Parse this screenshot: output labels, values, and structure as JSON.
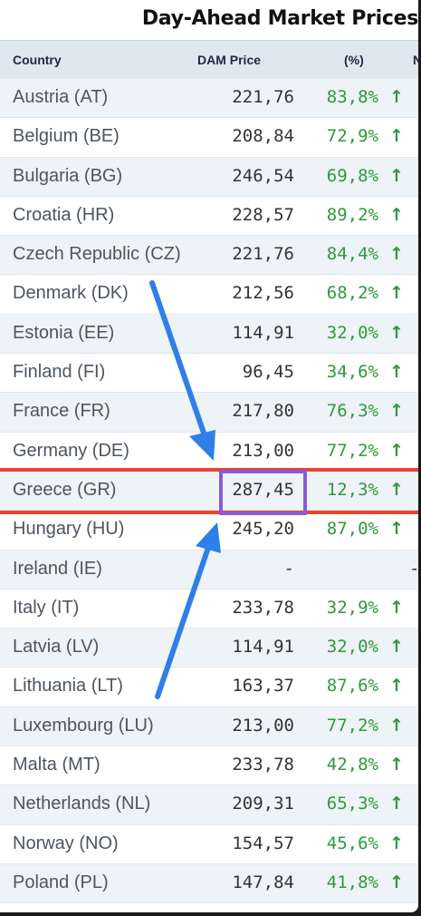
{
  "title": "Day-Ahead Market Prices",
  "table": {
    "headers": {
      "country": "Country",
      "price": "DAM Price",
      "pct": "(%)",
      "extra": "N"
    },
    "rows": [
      {
        "country": "Austria (AT)",
        "price": "221,76",
        "pct": "83,8%",
        "arrow": "↑"
      },
      {
        "country": "Belgium (BE)",
        "price": "208,84",
        "pct": "72,9%",
        "arrow": "↑"
      },
      {
        "country": "Bulgaria (BG)",
        "price": "246,54",
        "pct": "69,8%",
        "arrow": "↑"
      },
      {
        "country": "Croatia (HR)",
        "price": "228,57",
        "pct": "89,2%",
        "arrow": "↑"
      },
      {
        "country": "Czech Republic (CZ)",
        "price": "221,76",
        "pct": "84,4%",
        "arrow": "↑"
      },
      {
        "country": "Denmark (DK)",
        "price": "212,56",
        "pct": "68,2%",
        "arrow": "↑"
      },
      {
        "country": "Estonia (EE)",
        "price": "114,91",
        "pct": "32,0%",
        "arrow": "↑"
      },
      {
        "country": "Finland (FI)",
        "price": "96,45",
        "pct": "34,6%",
        "arrow": "↑"
      },
      {
        "country": "France (FR)",
        "price": "217,80",
        "pct": "76,3%",
        "arrow": "↑"
      },
      {
        "country": "Germany (DE)",
        "price": "213,00",
        "pct": "77,2%",
        "arrow": "↑"
      },
      {
        "country": "Greece (GR)",
        "price": "287,45",
        "pct": "12,3%",
        "arrow": "↑"
      },
      {
        "country": "Hungary (HU)",
        "price": "245,20",
        "pct": "87,0%",
        "arrow": "↑"
      },
      {
        "country": "Ireland (IE)",
        "price": "-",
        "pct": "",
        "arrow": "",
        "dash": "-"
      },
      {
        "country": "Italy (IT)",
        "price": "233,78",
        "pct": "32,9%",
        "arrow": "↑"
      },
      {
        "country": "Latvia (LV)",
        "price": "114,91",
        "pct": "32,0%",
        "arrow": "↑"
      },
      {
        "country": "Lithuania (LT)",
        "price": "163,37",
        "pct": "87,6%",
        "arrow": "↑"
      },
      {
        "country": "Luxembourg (LU)",
        "price": "213,00",
        "pct": "77,2%",
        "arrow": "↑"
      },
      {
        "country": "Malta (MT)",
        "price": "233,78",
        "pct": "42,8%",
        "arrow": "↑"
      },
      {
        "country": "Netherlands (NL)",
        "price": "209,31",
        "pct": "65,3%",
        "arrow": "↑"
      },
      {
        "country": "Norway (NO)",
        "price": "154,57",
        "pct": "45,6%",
        "arrow": "↑"
      },
      {
        "country": "Poland (PL)",
        "price": "147,84",
        "pct": "41,8%",
        "arrow": "↑"
      }
    ]
  },
  "colors": {
    "positive": "#2e9a3a",
    "highlight_line": "#e8452c",
    "highlight_box": "#8a5bd8",
    "annotation_arrow": "#2f7fe8"
  }
}
